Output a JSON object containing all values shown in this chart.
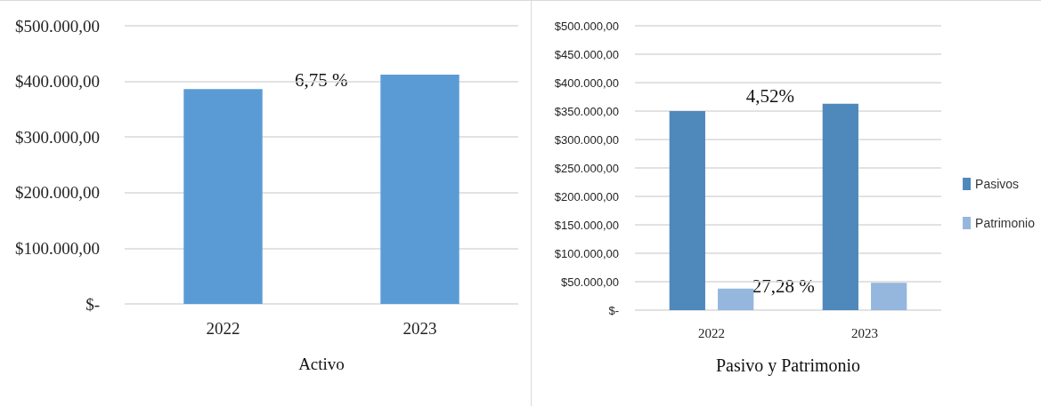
{
  "chart_data": [
    {
      "type": "bar",
      "xlabel": "Activo",
      "categories": [
        "2022",
        "2023"
      ],
      "series": [
        {
          "color": "#5b9bd5",
          "values": [
            386000,
            412000
          ]
        }
      ],
      "ylim": [
        0,
        500000
      ],
      "yticks": [
        {
          "value": 0,
          "label": "$-"
        },
        {
          "value": 100000,
          "label": "$100.000,00"
        },
        {
          "value": 200000,
          "label": "$200.000,00"
        },
        {
          "value": 300000,
          "label": "$300.000,00"
        },
        {
          "value": 400000,
          "label": "$400.000,00"
        },
        {
          "value": 500000,
          "label": "$500.000,00"
        }
      ],
      "grid": "y",
      "legend": false,
      "annotations": [
        "6,75 %"
      ]
    },
    {
      "type": "bar",
      "xlabel": "Pasivo y Patrimonio",
      "categories": [
        "2022",
        "2023"
      ],
      "series": [
        {
          "name": "Pasivos",
          "color": "#4f88bb",
          "values": [
            350000,
            363000
          ]
        },
        {
          "name": "Patrimonio",
          "color": "#95b6dd",
          "values": [
            38000,
            48000
          ]
        }
      ],
      "ylim": [
        0,
        500000
      ],
      "yticks": [
        {
          "value": 0,
          "label": "$-"
        },
        {
          "value": 50000,
          "label": "$50.000,00"
        },
        {
          "value": 100000,
          "label": "$100.000,00"
        },
        {
          "value": 150000,
          "label": "$150.000,00"
        },
        {
          "value": 200000,
          "label": "$200.000,00"
        },
        {
          "value": 250000,
          "label": "$250.000,00"
        },
        {
          "value": 300000,
          "label": "$300.000,00"
        },
        {
          "value": 350000,
          "label": "$350.000,00"
        },
        {
          "value": 400000,
          "label": "$400.000,00"
        },
        {
          "value": 450000,
          "label": "$450.000,00"
        },
        {
          "value": 500000,
          "label": "$500.000,00"
        }
      ],
      "grid": "y",
      "legend": "right",
      "annotations": [
        "4,52%",
        "27,28 %"
      ]
    }
  ]
}
